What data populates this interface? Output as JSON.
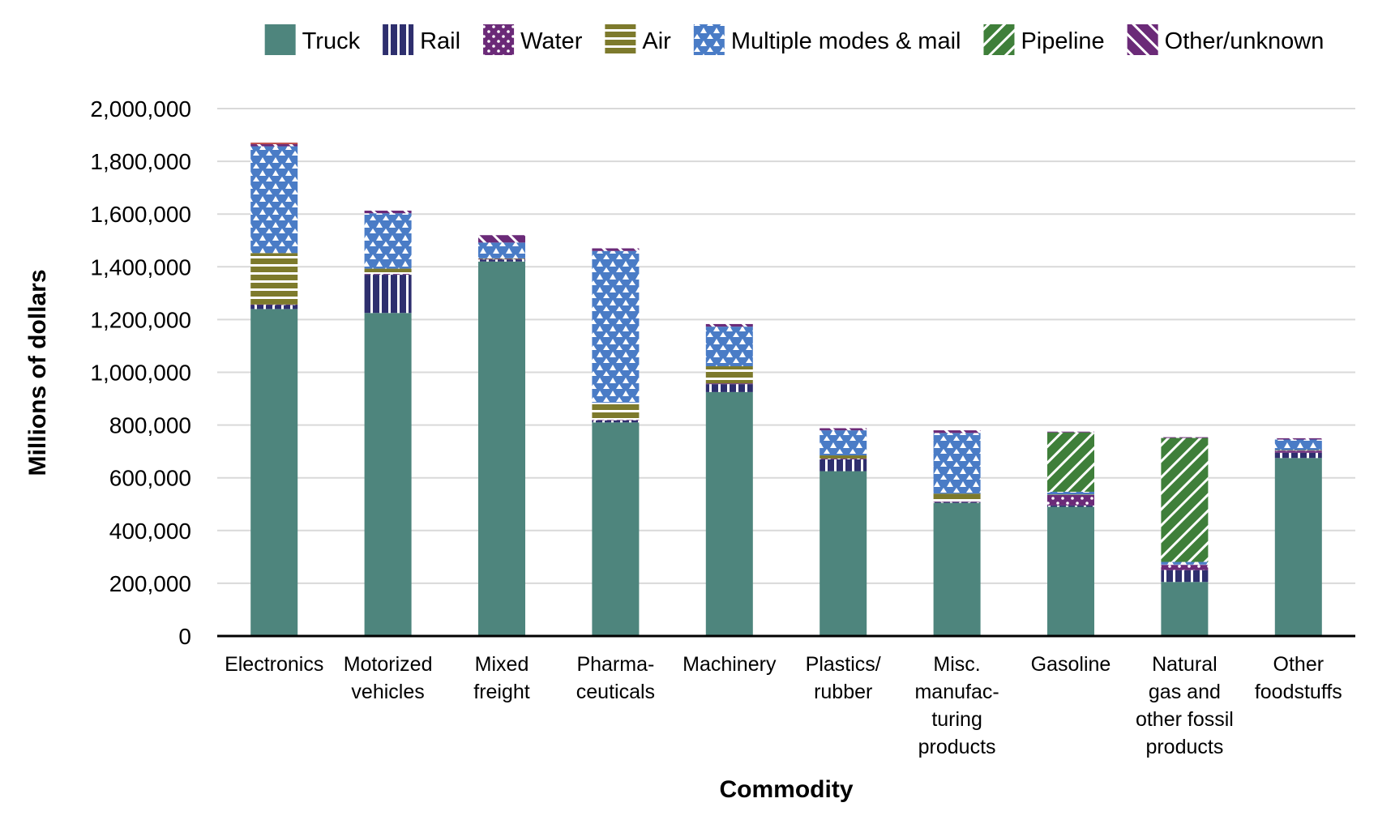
{
  "chart_data": {
    "type": "bar",
    "stacked": true,
    "title": "",
    "xlabel": "Commodity",
    "ylabel": "Millions of dollars",
    "ylim": [
      0,
      2000000
    ],
    "yticks": [
      0,
      200000,
      400000,
      600000,
      800000,
      1000000,
      1200000,
      1400000,
      1600000,
      1800000,
      2000000
    ],
    "ytick_labels": [
      "0",
      "200,000",
      "400,000",
      "600,000",
      "800,000",
      "1,000,000",
      "1,200,000",
      "1,400,000",
      "1,600,000",
      "1,800,000",
      "2,000,000"
    ],
    "grid": true,
    "legend_position": "top",
    "categories": [
      [
        "Electronics"
      ],
      [
        "Motorized",
        "vehicles"
      ],
      [
        "Mixed",
        "freight"
      ],
      [
        "Pharma-",
        "ceuticals"
      ],
      [
        "Machinery"
      ],
      [
        "Plastics/",
        "rubber"
      ],
      [
        "Misc.",
        "manufac-",
        "turing",
        "products"
      ],
      [
        "Gasoline"
      ],
      [
        "Natural",
        "gas and",
        "other fossil",
        "products"
      ],
      [
        "Other",
        "foodstuffs"
      ]
    ],
    "series": [
      {
        "name": "Truck",
        "color": "#4e857d",
        "pattern": "solid",
        "values": [
          1240000,
          1225000,
          1420000,
          810000,
          925000,
          625000,
          505000,
          490000,
          205000,
          675000
        ]
      },
      {
        "name": "Rail",
        "color": "#2e2f6e",
        "pattern": "vertical-stripes",
        "values": [
          15000,
          145000,
          8000,
          8000,
          30000,
          45000,
          3000,
          5000,
          45000,
          20000
        ]
      },
      {
        "name": "Water",
        "color": "#6b2a78",
        "pattern": "dots",
        "values": [
          2000,
          3000,
          2000,
          2000,
          3000,
          3000,
          2000,
          40000,
          20000,
          8000
        ]
      },
      {
        "name": "Air",
        "color": "#7d7a2c",
        "pattern": "horizontal-stripes",
        "values": [
          195000,
          20000,
          2000,
          65000,
          65000,
          12000,
          30000,
          2000,
          1000,
          2000
        ]
      },
      {
        "name": "Multiple modes & mail",
        "color": "#4a7cc6",
        "pattern": "triangles",
        "values": [
          405000,
          210000,
          60000,
          575000,
          150000,
          95000,
          230000,
          10000,
          10000,
          40000
        ]
      },
      {
        "name": "Pipeline",
        "color": "#3f7f3a",
        "pattern": "diagonal-back",
        "values": [
          0,
          0,
          0,
          0,
          0,
          0,
          0,
          225000,
          470000,
          0
        ]
      },
      {
        "name": "Other/unknown",
        "color": "#6b2a78",
        "pattern": "diagonal-forward",
        "values": [
          8000,
          10000,
          28000,
          10000,
          10000,
          8000,
          10000,
          3000,
          3000,
          5000
        ]
      }
    ],
    "top_cap": {
      "color": "#c0504d",
      "category_index": 0,
      "value": 6000
    }
  }
}
